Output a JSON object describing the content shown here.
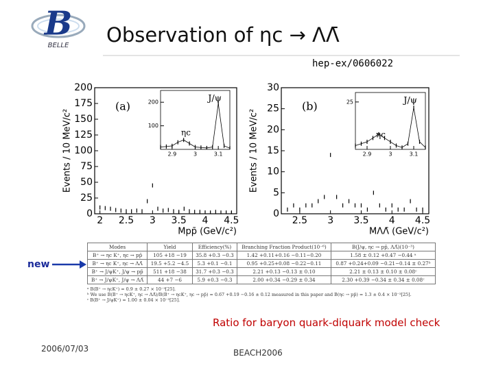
{
  "header": {
    "logo_letter": "B",
    "logo_text": "BELLE",
    "title": "Observation of ηc → ΛΛ̄",
    "reference": "hep-ex/0606022"
  },
  "plots": [
    {
      "panel_label": "(a)",
      "y_label": "Events / 10 MeV/c²",
      "x_label": "Mpp̄ (GeV/c²)",
      "xlim": [
        1.9,
        4.6
      ],
      "ylim": [
        0,
        200
      ],
      "xticks": [
        2,
        2.5,
        3,
        3.5,
        4,
        4.5
      ],
      "yticks": [
        0,
        25,
        50,
        75,
        100,
        125,
        150,
        175,
        200
      ],
      "x": [
        2.0,
        2.1,
        2.2,
        2.3,
        2.4,
        2.5,
        2.6,
        2.7,
        2.8,
        2.9,
        3.0,
        3.1,
        3.2,
        3.3,
        3.4,
        3.5,
        3.6,
        3.7,
        3.8,
        3.9,
        4.0,
        4.1,
        4.2,
        4.3,
        4.4,
        4.5
      ],
      "values": [
        10,
        9,
        8,
        6,
        5,
        4,
        4,
        5,
        4,
        20,
        45,
        8,
        5,
        6,
        4,
        3,
        8,
        4,
        3,
        3,
        2,
        2,
        3,
        2,
        2,
        1
      ],
      "inset": {
        "xlim": [
          2.85,
          3.15
        ],
        "ylim": [
          0,
          250
        ],
        "xticks": [
          2.9,
          3,
          3.1
        ],
        "yticks": [
          100,
          200
        ],
        "peak_label": "J/ψ",
        "second_label": "ηc",
        "x": [
          2.85,
          2.875,
          2.9,
          2.925,
          2.95,
          2.975,
          3.0,
          3.025,
          3.05,
          3.075,
          3.1,
          3.125,
          3.15
        ],
        "values": [
          10,
          12,
          15,
          30,
          40,
          25,
          10,
          8,
          6,
          10,
          195,
          15,
          5
        ]
      }
    },
    {
      "panel_label": "(b)",
      "y_label": "Events / 10 MeV/c²",
      "x_label": "MΛΛ̄ (GeV/c²)",
      "xlim": [
        2.2,
        4.6
      ],
      "ylim": [
        0,
        30
      ],
      "xticks": [
        2.5,
        3,
        3.5,
        4,
        4.5
      ],
      "yticks": [
        0,
        5,
        10,
        15,
        20,
        25,
        30
      ],
      "x": [
        2.3,
        2.4,
        2.5,
        2.6,
        2.7,
        2.8,
        2.9,
        3.0,
        3.1,
        3.2,
        3.3,
        3.4,
        3.5,
        3.6,
        3.7,
        3.8,
        3.9,
        4.0,
        4.1,
        4.2,
        4.3,
        4.4,
        4.5
      ],
      "values": [
        1,
        2,
        1,
        2,
        2,
        3,
        4,
        14,
        4,
        2,
        3,
        2,
        2,
        1,
        5,
        2,
        1,
        2,
        1,
        1,
        3,
        1,
        1
      ],
      "inset": {
        "xlim": [
          2.85,
          3.15
        ],
        "ylim": [
          0,
          30
        ],
        "xticks": [
          2.9,
          3,
          3.1
        ],
        "yticks": [
          25
        ],
        "peak_label": "J/ψ",
        "second_label": "ηc",
        "x": [
          2.85,
          2.875,
          2.9,
          2.925,
          2.95,
          2.975,
          3.0,
          3.025,
          3.05,
          3.075,
          3.1,
          3.125,
          3.15
        ],
        "values": [
          2,
          3,
          4,
          6,
          8,
          6,
          4,
          2,
          1,
          3,
          22,
          4,
          1
        ]
      }
    }
  ],
  "table": {
    "columns": [
      "Modes",
      "Yield",
      "Efficiency(%)",
      "Branching Fraction Product(10⁻⁶)",
      "B(J/ψ, ηc → pp̄, ΛΛ̄)(10⁻³)"
    ],
    "rows": [
      [
        "B⁺ → ηc K⁺, ηc → pp̄",
        "105 +18 −19",
        "35.8 +0.3 −0.3",
        "1.42 +0.11+0.16 −0.11−0.20",
        "1.58 ± 0.12 +0.47 −0.44 ᵃ"
      ],
      [
        "B⁺ → ηc K⁺, ηc → ΛΛ̄",
        "19.5 +5.2 −4.5",
        "5.3 +0.1 −0.1",
        "0.95 +0.25+0.08 −0.22−0.11",
        "0.87 +0.24+0.09 −0.21−0.14 ± 0.27ᵇ"
      ],
      [
        "B⁺ → J/ψK⁺, J/ψ → pp̄",
        "511 +18 −38",
        "31.7 +0.3 −0.3",
        "2.21 +0.13 −0.13 ± 0.10",
        "2.21 ± 0.13 ± 0.10 ± 0.08ᶜ"
      ],
      [
        "B⁺ → J/ψK⁺, J/ψ → ΛΛ̄",
        "44 +7 −6",
        "5.9 +0.3 −0.3",
        "2.00 +0.34 −0.29 ± 0.34",
        "2.30 +0.39 −0.34 ± 0.34 ± 0.08ᶜ"
      ]
    ],
    "footnotes": [
      "ᵃ B(B⁺ → ηcK⁺) = 0.9 ± 0.27 × 10⁻³[25].",
      "ᵇ We use B(B⁺ → ηcK⁺, ηc → ΛΛ̄)/B(B⁺ → ηcK⁺, ηc → pp̄) = 0.67 +0.19 −0.16 ± 0.12 measured in this paper and B(ηc → pp̄) = 1.3 ± 0.4 × 10⁻³[25].",
      "ᶜ B(B⁺ → J/ψK⁺) = 1.00 ± 0.04 × 10⁻³[25]."
    ]
  },
  "new_label": "new",
  "note": "Ratio for baryon quark-diquark model check",
  "footer": {
    "date": "2006/07/03",
    "conference": "BEACH2006"
  }
}
